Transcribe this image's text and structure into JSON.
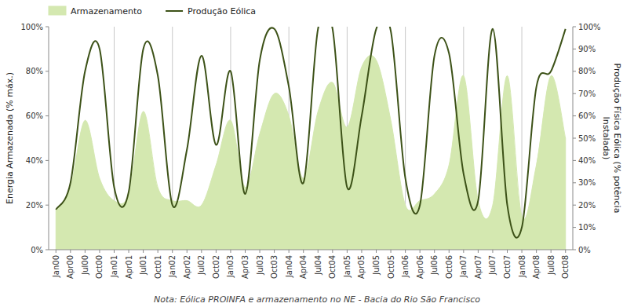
{
  "chart_data": {
    "type": "area",
    "categories": [
      "Jan00",
      "Apr00",
      "Jul00",
      "Oct00",
      "Jan01",
      "Apr01",
      "Jul01",
      "Oct01",
      "Jan02",
      "Apr02",
      "Jul02",
      "Oct02",
      "Jan03",
      "Apr03",
      "Jul03",
      "Oct03",
      "Jan04",
      "Apr04",
      "Jul04",
      "Oct04",
      "Jan05",
      "Apr05",
      "Jul05",
      "Oct05",
      "Jan06",
      "Apr06",
      "Jul06",
      "Oct06",
      "Jan07",
      "Apr07",
      "Jul07",
      "Oct07",
      "Jan08",
      "Apr08",
      "Jul08",
      "Oct08"
    ],
    "series": [
      {
        "name": "Armazenamento",
        "type": "area",
        "color": "#d4e8b0",
        "values": [
          18,
          28,
          58,
          32,
          22,
          25,
          62,
          28,
          22,
          22,
          20,
          38,
          58,
          28,
          52,
          70,
          60,
          32,
          62,
          75,
          55,
          82,
          85,
          58,
          20,
          22,
          25,
          38,
          78,
          22,
          20,
          78,
          15,
          38,
          78,
          50
        ]
      },
      {
        "name": "Produção Eólica",
        "type": "line",
        "color": "#3d5218",
        "axis": "y2",
        "values": [
          18,
          30,
          80,
          90,
          28,
          26,
          90,
          78,
          20,
          45,
          87,
          47,
          80,
          25,
          85,
          99,
          73,
          30,
          99,
          99,
          28,
          60,
          99,
          98,
          32,
          20,
          87,
          88,
          34,
          22,
          99,
          20,
          10,
          73,
          80,
          99
        ]
      }
    ],
    "y_label": "Energia Armazenada (% máx.)",
    "y2_label": "Produção Física Eólica (% potência\nInstalada)",
    "ylim": [
      0,
      100
    ],
    "yticks": [
      {
        "value": 0,
        "label": "0%"
      },
      {
        "value": 20,
        "label": "20%"
      },
      {
        "value": 40,
        "label": "40%"
      },
      {
        "value": 60,
        "label": "60%"
      },
      {
        "value": 80,
        "label": "80%"
      },
      {
        "value": 100,
        "label": "100%"
      }
    ],
    "y2lim": [
      0,
      100
    ],
    "y2ticks": [
      {
        "value": 0,
        "label": "0%"
      },
      {
        "value": 10,
        "label": "10%"
      },
      {
        "value": 20,
        "label": "20%"
      },
      {
        "value": 30,
        "label": "30%"
      },
      {
        "value": 40,
        "label": "40%"
      },
      {
        "value": 50,
        "label": "50%"
      },
      {
        "value": 60,
        "label": "60%"
      },
      {
        "value": 70,
        "label": "70%"
      },
      {
        "value": 80,
        "label": "80%"
      },
      {
        "value": 90,
        "label": "90%"
      },
      {
        "value": 100,
        "label": "100%"
      }
    ],
    "vlines": [
      "Jan01",
      "Jan02",
      "Jan03",
      "Jan04",
      "Jan05",
      "Jan06",
      "Jan07",
      "Jan08"
    ],
    "legend": "upper left",
    "note": "Nota: Eólica PROINFA e armazenamento no NE - Bacia do Rio São Francisco"
  }
}
